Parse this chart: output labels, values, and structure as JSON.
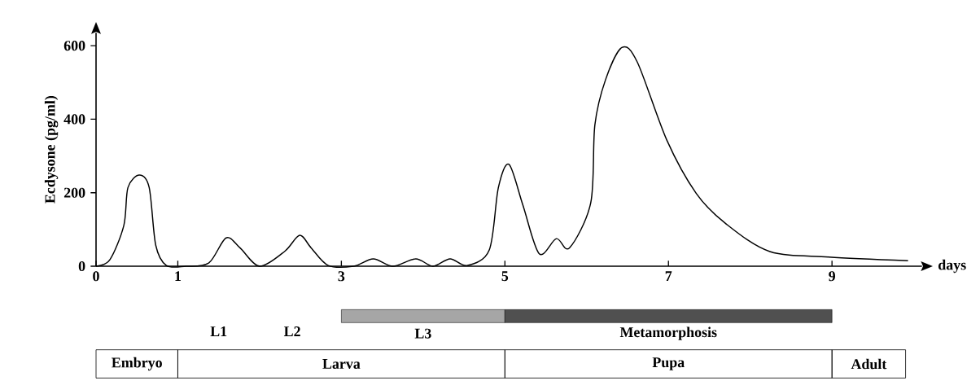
{
  "chart_data": {
    "type": "line",
    "xlabel": "days",
    "ylabel": "Ecdysone (pg/ml)",
    "x": [
      0,
      0.17,
      0.34,
      0.39,
      0.53,
      0.65,
      0.73,
      0.86,
      1.1,
      1.38,
      1.59,
      1.76,
      2.0,
      2.31,
      2.49,
      2.63,
      2.84,
      3.15,
      3.39,
      3.63,
      3.91,
      4.12,
      4.33,
      4.54,
      4.81,
      4.92,
      5.05,
      5.22,
      5.42,
      5.63,
      5.79,
      6.05,
      6.1,
      6.23,
      6.43,
      6.62,
      6.98,
      7.34,
      7.7,
      8.24,
      8.96,
      9.93
    ],
    "series": [
      {
        "color": "#000000",
        "values": [
          0,
          18,
          111,
          214,
          248,
          214,
          57,
          2,
          0,
          9,
          77,
          50,
          0,
          41,
          84,
          50,
          2,
          0,
          20,
          0,
          20,
          0,
          20,
          2,
          45,
          214,
          277,
          166,
          34,
          75,
          50,
          173,
          384,
          507,
          595,
          555,
          343,
          198,
          116,
          40,
          25,
          15
        ]
      }
    ],
    "xlim": [
      0,
      10.1
    ],
    "ylim": [
      0,
      635
    ],
    "xticks": [
      0,
      1,
      3,
      5,
      7,
      9
    ],
    "yticks": [
      0,
      200,
      400,
      600
    ],
    "annotations": [
      "L1",
      "L2",
      "L3",
      "Metamorphosis",
      "Embryo",
      "Larva",
      "Pupa",
      "Adult"
    ]
  }
}
